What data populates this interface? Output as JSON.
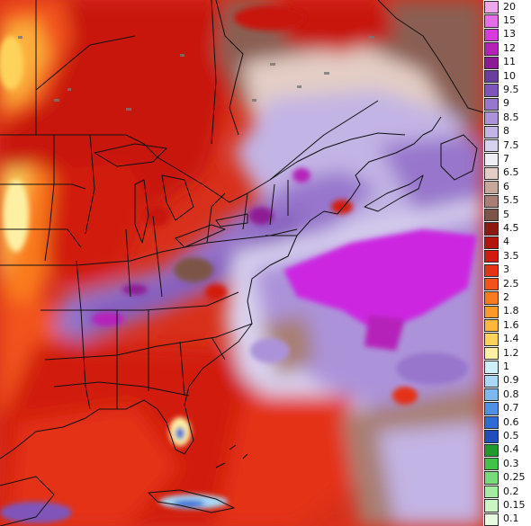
{
  "map": {
    "colors": {
      "deep_red": "#c0120a",
      "red": "#e12a0d",
      "orange_red": "#f04a12",
      "orange": "#fb8a1c",
      "yellow": "#fbd55a",
      "pale_yellow": "#fff7b0",
      "light_blue": "#b7e3f5",
      "blue": "#3b7fe0",
      "brown_dark": "#6b4a3a",
      "brown": "#9a7466",
      "tan": "#c9aea4",
      "pale": "#eee4ea",
      "lavender": "#c9bde8",
      "violet": "#9a86d6",
      "purple": "#7d4ec8",
      "magenta": "#cc26e0",
      "boundary": "#111111"
    }
  },
  "legend": {
    "items": [
      {
        "label": "20",
        "color": "#f0a6ef"
      },
      {
        "label": "15",
        "color": "#e56fe7"
      },
      {
        "label": "13",
        "color": "#d83bdb"
      },
      {
        "label": "12",
        "color": "#b520b9"
      },
      {
        "label": "11",
        "color": "#8d1a94"
      },
      {
        "label": "10",
        "color": "#6a3d9e"
      },
      {
        "label": "9.5",
        "color": "#7f55b9"
      },
      {
        "label": "9",
        "color": "#9776cc"
      },
      {
        "label": "8.5",
        "color": "#ac93d9"
      },
      {
        "label": "8",
        "color": "#c2b4e4"
      },
      {
        "label": "7.5",
        "color": "#d9d2ef"
      },
      {
        "label": "7",
        "color": "#f0edf5"
      },
      {
        "label": "6.5",
        "color": "#e3cdc5"
      },
      {
        "label": "6",
        "color": "#c9a89c"
      },
      {
        "label": "5.5",
        "color": "#a87f72"
      },
      {
        "label": "5",
        "color": "#7d5547"
      },
      {
        "label": "4.5",
        "color": "#8c1a10"
      },
      {
        "label": "4",
        "color": "#b3140c"
      },
      {
        "label": "3.5",
        "color": "#d11b10"
      },
      {
        "label": "3",
        "color": "#e43315"
      },
      {
        "label": "2.5",
        "color": "#f2531a"
      },
      {
        "label": "2",
        "color": "#fa7a1e"
      },
      {
        "label": "1.8",
        "color": "#fc9a25"
      },
      {
        "label": "1.6",
        "color": "#fdb83a"
      },
      {
        "label": "1.4",
        "color": "#fdd35c"
      },
      {
        "label": "1.2",
        "color": "#fef0a3"
      },
      {
        "label": "1",
        "color": "#cdeffa"
      },
      {
        "label": "0.9",
        "color": "#a8d8f6"
      },
      {
        "label": "0.8",
        "color": "#7bb9ef"
      },
      {
        "label": "0.7",
        "color": "#4f90e6"
      },
      {
        "label": "0.6",
        "color": "#2f6bd6"
      },
      {
        "label": "0.5",
        "color": "#1f4fbf"
      },
      {
        "label": "0.4",
        "color": "#1f9a2b"
      },
      {
        "label": "0.3",
        "color": "#43c24a"
      },
      {
        "label": "0.25",
        "color": "#76dc78"
      },
      {
        "label": "0.2",
        "color": "#a4ec9f"
      },
      {
        "label": "0.15",
        "color": "#c9f6c2"
      },
      {
        "label": "0.1",
        "color": "#e6fbe0"
      }
    ]
  }
}
